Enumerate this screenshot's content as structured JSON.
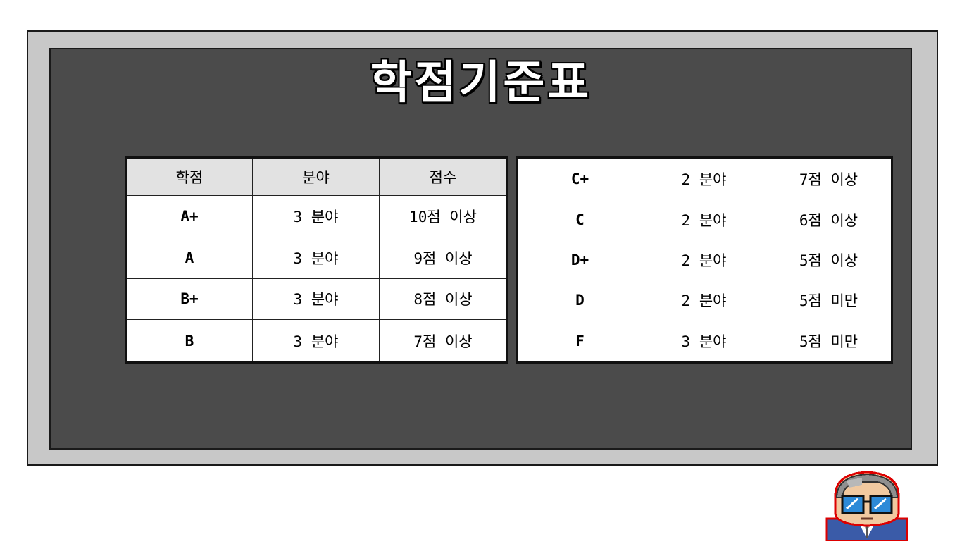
{
  "title": "학점기준표",
  "left_table": {
    "headers": [
      "학점",
      "분야",
      "점수"
    ],
    "rows": [
      [
        "A+",
        "3 분야",
        "10점 이상"
      ],
      [
        "A",
        "3 분야",
        "9점 이상"
      ],
      [
        "B+",
        "3 분야",
        "8점 이상"
      ],
      [
        "B",
        "3 분야",
        "7점 이상"
      ]
    ]
  },
  "right_table": {
    "rows": [
      [
        "C+",
        "2 분야",
        "7점 이상"
      ],
      [
        "C",
        "2 분야",
        "6점 이상"
      ],
      [
        "D+",
        "2 분야",
        "5점 이상"
      ],
      [
        "D",
        "2 분야",
        "5점 미만"
      ],
      [
        "F",
        "3 분야",
        "5점 미만"
      ]
    ]
  },
  "colors": {
    "panel_outer": "#c8c8c8",
    "panel_inner": "#4b4b4b",
    "header_bg": "#e2e2e2"
  },
  "mascot": "professor-avatar-icon"
}
